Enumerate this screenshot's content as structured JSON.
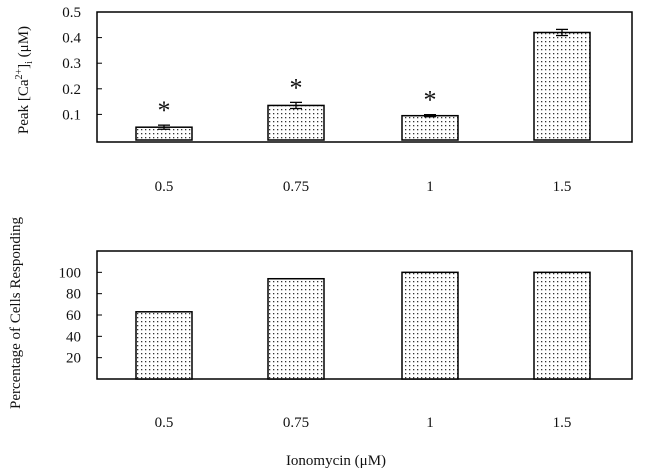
{
  "chart_data": [
    {
      "type": "bar",
      "categories": [
        "0.5",
        "0.75",
        "1",
        "1.5"
      ],
      "values": [
        0.05,
        0.135,
        0.095,
        0.42
      ],
      "errors": [
        0.008,
        0.012,
        0.004,
        0.012
      ],
      "significance": [
        "*",
        "*",
        "*",
        ""
      ],
      "ylabel": "Peak [Ca2+]i (μM)",
      "ylabel_parts": {
        "pre": "Peak  [Ca",
        "sup": "2+",
        "post": "]",
        "sub": "i",
        "unit": " (μM)"
      },
      "yticks": [
        "0.1",
        "0.2",
        "0.3",
        "0.4",
        "0.5"
      ],
      "ylim": [
        0,
        0.5
      ],
      "grid": false,
      "legend": "none",
      "pattern": "dotted"
    },
    {
      "type": "bar",
      "categories": [
        "0.5",
        "0.75",
        "1",
        "1.5"
      ],
      "values": [
        63,
        94,
        100,
        100
      ],
      "ylabel": "Percentage of Cells Responding",
      "xlabel": "Ionomycin (μM)",
      "yticks": [
        "20",
        "40",
        "60",
        "80",
        "100"
      ],
      "ylim": [
        0,
        120
      ],
      "grid": false,
      "legend": "none",
      "pattern": "dotted"
    }
  ]
}
